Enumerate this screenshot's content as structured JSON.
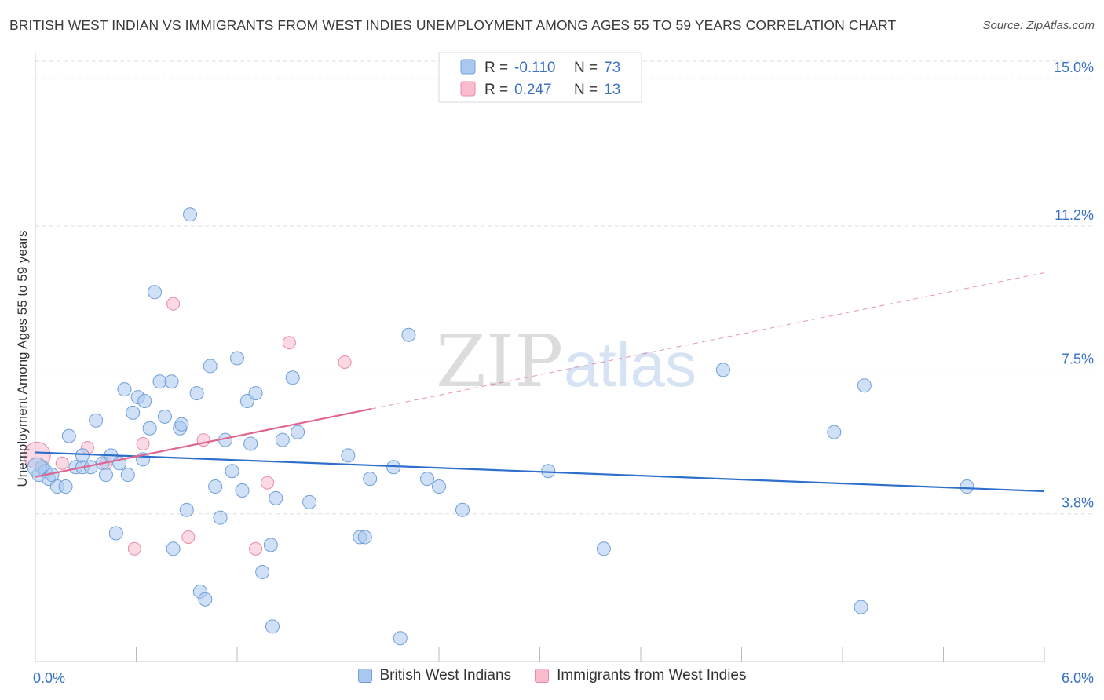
{
  "title": "BRITISH WEST INDIAN VS IMMIGRANTS FROM WEST INDIES UNEMPLOYMENT AMONG AGES 55 TO 59 YEARS CORRELATION CHART",
  "source": "Source: ZipAtlas.com",
  "watermark": {
    "zip": "ZIP",
    "atlas": "atlas"
  },
  "colors": {
    "blue_fill": "#a9c8f0",
    "blue_stroke": "#6f9fd8",
    "blue_line": "#2e6fcc",
    "pink_fill": "#f8bccd",
    "pink_stroke": "#e88aa6",
    "pink_line": "#e06690",
    "axis_label": "#3a72c4",
    "grid": "#dddddd"
  },
  "chart_data": {
    "type": "scatter",
    "xlabel": "",
    "ylabel": "Unemployment Among Ages 55 to 59 years",
    "xlim": [
      0,
      6
    ],
    "ylim": [
      0,
      15.5
    ],
    "x_tick_labels": [
      {
        "value": 0,
        "label": "0.0%"
      },
      {
        "value": 6,
        "label": "6.0%"
      }
    ],
    "x_minor_ticks": [
      0.6,
      1.2,
      1.8,
      2.4,
      3.0,
      3.6,
      4.2,
      4.8,
      5.4,
      6.0
    ],
    "y_ticks": [
      {
        "value": 3.8,
        "label": "3.8%"
      },
      {
        "value": 7.5,
        "label": "7.5%"
      },
      {
        "value": 11.2,
        "label": "11.2%"
      },
      {
        "value": 15.0,
        "label": "15.0%"
      }
    ],
    "legend_stats": [
      {
        "r_label": "R =",
        "r_value": "-0.110",
        "n_label": "N =",
        "n_value": "73"
      },
      {
        "r_label": "R =",
        "r_value": "0.247",
        "n_label": "N =",
        "n_value": "13"
      }
    ],
    "series": [
      {
        "name": "British West Indians",
        "color": "blue",
        "points": [
          [
            0.02,
            4.8
          ],
          [
            0.04,
            5.0
          ],
          [
            0.06,
            4.9
          ],
          [
            0.08,
            4.7
          ],
          [
            0.1,
            4.8
          ],
          [
            0.13,
            4.5
          ],
          [
            0.18,
            4.5
          ],
          [
            0.2,
            5.8
          ],
          [
            0.24,
            5.0
          ],
          [
            0.28,
            5.0
          ],
          [
            0.28,
            5.3
          ],
          [
            0.33,
            5.0
          ],
          [
            0.36,
            6.2
          ],
          [
            0.4,
            5.1
          ],
          [
            0.42,
            4.8
          ],
          [
            0.45,
            5.3
          ],
          [
            0.48,
            3.3
          ],
          [
            0.5,
            5.1
          ],
          [
            0.53,
            7.0
          ],
          [
            0.55,
            4.8
          ],
          [
            0.58,
            6.4
          ],
          [
            0.61,
            6.8
          ],
          [
            0.64,
            5.2
          ],
          [
            0.65,
            6.7
          ],
          [
            0.68,
            6.0
          ],
          [
            0.71,
            9.5
          ],
          [
            0.74,
            7.2
          ],
          [
            0.77,
            6.3
          ],
          [
            0.81,
            7.2
          ],
          [
            0.82,
            2.9
          ],
          [
            0.86,
            6.0
          ],
          [
            0.87,
            6.1
          ],
          [
            0.9,
            3.9
          ],
          [
            0.92,
            11.5
          ],
          [
            0.96,
            6.9
          ],
          [
            0.98,
            1.8
          ],
          [
            1.01,
            1.6
          ],
          [
            1.04,
            7.6
          ],
          [
            1.07,
            4.5
          ],
          [
            1.1,
            3.7
          ],
          [
            1.13,
            5.7
          ],
          [
            1.17,
            4.9
          ],
          [
            1.2,
            7.8
          ],
          [
            1.23,
            4.4
          ],
          [
            1.26,
            6.7
          ],
          [
            1.28,
            5.6
          ],
          [
            1.31,
            6.9
          ],
          [
            1.35,
            2.3
          ],
          [
            1.4,
            3.0
          ],
          [
            1.41,
            0.9
          ],
          [
            1.43,
            4.2
          ],
          [
            1.47,
            5.7
          ],
          [
            1.53,
            7.3
          ],
          [
            1.56,
            5.9
          ],
          [
            1.63,
            4.1
          ],
          [
            1.86,
            5.3
          ],
          [
            1.93,
            3.2
          ],
          [
            1.96,
            3.2
          ],
          [
            1.99,
            4.7
          ],
          [
            2.13,
            5.0
          ],
          [
            2.17,
            0.6
          ],
          [
            2.22,
            8.4
          ],
          [
            2.33,
            4.7
          ],
          [
            2.4,
            4.5
          ],
          [
            2.54,
            3.9
          ],
          [
            3.05,
            4.9
          ],
          [
            3.38,
            2.9
          ],
          [
            4.09,
            7.5
          ],
          [
            4.75,
            5.9
          ],
          [
            4.91,
            1.4
          ],
          [
            4.93,
            7.1
          ],
          [
            5.54,
            4.5
          ],
          [
            0.01,
            5.0
          ]
        ],
        "trend": {
          "x0": 0.0,
          "y0": 5.38,
          "x1": 6.0,
          "y1": 4.38
        }
      },
      {
        "name": "Immigrants from West Indies",
        "color": "pink",
        "points": [
          [
            0.01,
            5.3
          ],
          [
            0.16,
            5.1
          ],
          [
            0.31,
            5.5
          ],
          [
            0.42,
            5.1
          ],
          [
            0.59,
            2.9
          ],
          [
            0.64,
            5.6
          ],
          [
            0.82,
            9.2
          ],
          [
            0.91,
            3.2
          ],
          [
            1.0,
            5.7
          ],
          [
            1.31,
            2.9
          ],
          [
            1.38,
            4.6
          ],
          [
            1.51,
            8.2
          ],
          [
            1.84,
            7.7
          ]
        ],
        "trend": {
          "x0": 0.0,
          "y0": 4.75,
          "x1": 2.0,
          "y1": 6.5
        },
        "trend_extension": {
          "x0": 2.0,
          "y0": 6.5,
          "x1": 6.0,
          "y1": 10.0
        }
      }
    ]
  }
}
